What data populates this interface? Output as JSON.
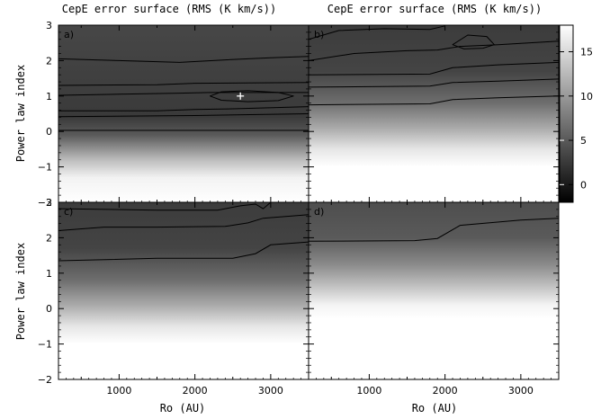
{
  "chart_data": {
    "type": "heatmap",
    "titles": [
      "CepE error surface (RMS (K km/s))",
      "CepE error surface (RMS (K km/s))"
    ],
    "xlabel": "Ro (AU)",
    "ylabel": "Power law index",
    "xlim": [
      200,
      3500
    ],
    "ylim": [
      -2,
      3
    ],
    "x_ticks": [
      1000,
      2000,
      3000
    ],
    "y_ticks": [
      -2,
      -1,
      0,
      1,
      2,
      3
    ],
    "y_tick_labels": [
      "−2",
      "−1",
      "0",
      "1",
      "2",
      "3"
    ],
    "colorbar": {
      "range": [
        -2,
        18
      ],
      "ticks": [
        0,
        5,
        10,
        15
      ],
      "tick_labels": [
        "0",
        "5",
        "10",
        "15"
      ],
      "colormap": "grayscale-inverted"
    },
    "best_fit_marker": {
      "panel": "a)",
      "x": 2600,
      "y": 1.0,
      "symbol": "+"
    },
    "panels": [
      {
        "tag": "a)",
        "grid_mode": "low",
        "contours": [
          {
            "points": [
              [
                200,
                2.05
              ],
              [
                1000,
                2.0
              ],
              [
                1800,
                1.95
              ],
              [
                2400,
                2.02
              ],
              [
                3000,
                2.08
              ],
              [
                3500,
                2.12
              ]
            ]
          },
          {
            "points": [
              [
                200,
                1.3
              ],
              [
                1500,
                1.32
              ],
              [
                2000,
                1.36
              ],
              [
                3500,
                1.38
              ]
            ]
          },
          {
            "points": [
              [
                200,
                1.02
              ],
              [
                1000,
                1.05
              ],
              [
                1800,
                1.08
              ],
              [
                2200,
                1.1
              ],
              [
                3500,
                1.1
              ]
            ]
          },
          {
            "points": [
              [
                200,
                0.58
              ],
              [
                1500,
                0.58
              ],
              [
                2000,
                0.62
              ],
              [
                2500,
                0.64
              ],
              [
                3500,
                0.7
              ]
            ]
          },
          {
            "points": [
              [
                200,
                0.42
              ],
              [
                2000,
                0.45
              ],
              [
                3500,
                0.5
              ]
            ]
          },
          {
            "points": [
              [
                200,
                0.03
              ],
              [
                3500,
                0.03
              ]
            ]
          }
        ],
        "closed_contours": [
          {
            "points": [
              [
                2200,
                1.0
              ],
              [
                2350,
                1.12
              ],
              [
                2700,
                1.15
              ],
              [
                3100,
                1.1
              ],
              [
                3300,
                1.0
              ],
              [
                3100,
                0.87
              ],
              [
                2700,
                0.84
              ],
              [
                2350,
                0.88
              ]
            ]
          }
        ]
      },
      {
        "tag": "b)",
        "grid_mode": "mid",
        "contours": [
          {
            "points": [
              [
                200,
                2.6
              ],
              [
                600,
                2.85
              ],
              [
                1200,
                2.9
              ],
              [
                1800,
                2.88
              ],
              [
                2000,
                2.98
              ]
            ]
          },
          {
            "points": [
              [
                200,
                2.0
              ],
              [
                800,
                2.2
              ],
              [
                1500,
                2.28
              ],
              [
                1900,
                2.3
              ],
              [
                2200,
                2.4
              ],
              [
                2700,
                2.45
              ],
              [
                3500,
                2.55
              ]
            ]
          },
          {
            "points": [
              [
                200,
                1.6
              ],
              [
                1800,
                1.62
              ],
              [
                2100,
                1.8
              ],
              [
                2700,
                1.88
              ],
              [
                3500,
                1.95
              ]
            ]
          },
          {
            "points": [
              [
                200,
                1.25
              ],
              [
                1800,
                1.28
              ],
              [
                2100,
                1.38
              ],
              [
                2700,
                1.42
              ],
              [
                3500,
                1.48
              ]
            ]
          },
          {
            "points": [
              [
                200,
                0.75
              ],
              [
                1800,
                0.78
              ],
              [
                2100,
                0.9
              ],
              [
                2700,
                0.95
              ],
              [
                3500,
                1.0
              ]
            ]
          }
        ],
        "closed_contours": [
          {
            "points": [
              [
                2100,
                2.45
              ],
              [
                2300,
                2.72
              ],
              [
                2550,
                2.68
              ],
              [
                2650,
                2.45
              ],
              [
                2500,
                2.35
              ],
              [
                2250,
                2.33
              ]
            ]
          }
        ]
      },
      {
        "tag": "c)",
        "grid_mode": "mid",
        "contours": [
          {
            "points": [
              [
                200,
                2.82
              ],
              [
                1500,
                2.78
              ],
              [
                2300,
                2.78
              ],
              [
                2600,
                2.9
              ],
              [
                2800,
                2.95
              ],
              [
                2900,
                2.82
              ],
              [
                3000,
                3.0
              ]
            ]
          },
          {
            "points": [
              [
                200,
                2.2
              ],
              [
                800,
                2.3
              ],
              [
                1500,
                2.3
              ],
              [
                2400,
                2.32
              ],
              [
                2700,
                2.42
              ],
              [
                2900,
                2.55
              ],
              [
                3500,
                2.65
              ]
            ]
          },
          {
            "points": [
              [
                200,
                1.35
              ],
              [
                1500,
                1.42
              ],
              [
                2500,
                1.42
              ],
              [
                2800,
                1.55
              ],
              [
                3000,
                1.8
              ],
              [
                3500,
                1.88
              ]
            ]
          }
        ],
        "closed_contours": []
      },
      {
        "tag": "d)",
        "grid_mode": "high",
        "contours": [
          {
            "points": [
              [
                200,
                1.9
              ],
              [
                1600,
                1.92
              ],
              [
                1900,
                1.98
              ],
              [
                2200,
                2.35
              ],
              [
                3000,
                2.5
              ],
              [
                3500,
                2.55
              ]
            ]
          }
        ],
        "closed_contours": []
      }
    ]
  }
}
